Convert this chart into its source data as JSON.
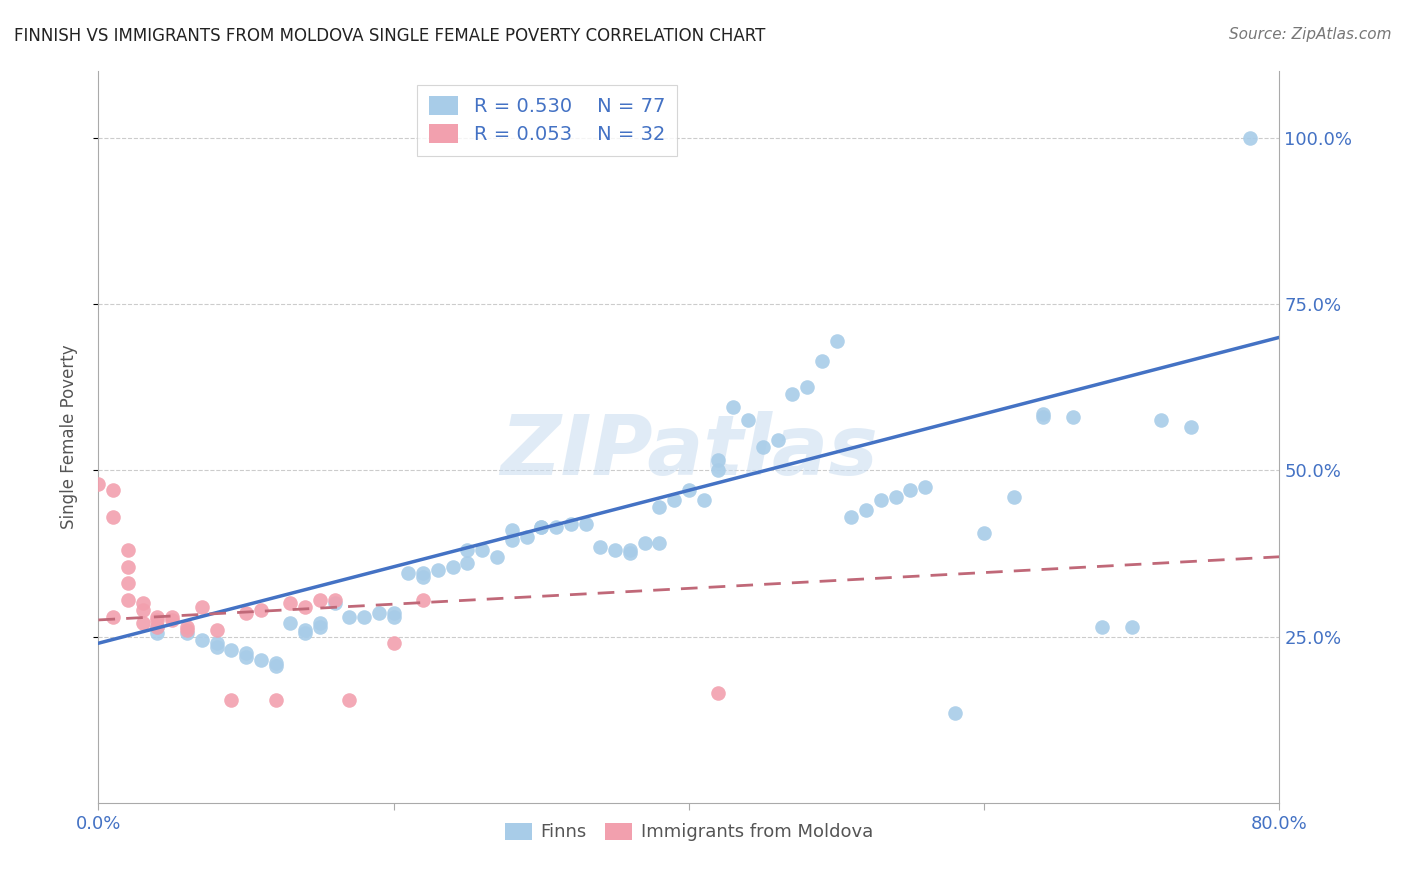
{
  "title": "FINNISH VS IMMIGRANTS FROM MOLDOVA SINGLE FEMALE POVERTY CORRELATION CHART",
  "source": "Source: ZipAtlas.com",
  "ylabel": "Single Female Poverty",
  "ytick_labels": [
    "100.0%",
    "75.0%",
    "50.0%",
    "25.0%"
  ],
  "ytick_values": [
    1.0,
    0.75,
    0.5,
    0.25
  ],
  "xlim": [
    0.0,
    0.8
  ],
  "ylim": [
    0.0,
    1.1
  ],
  "legend_r1": "R = 0.530",
  "legend_n1": "N = 77",
  "legend_r2": "R = 0.053",
  "legend_n2": "N = 32",
  "color_finn": "#A8CCE8",
  "color_moldova": "#F2A0AE",
  "color_finn_line": "#4472C4",
  "color_moldova_line": "#C06878",
  "background_color": "#FFFFFF",
  "watermark": "ZIPatlas",
  "finn_line_x0": 0.0,
  "finn_line_y0": 0.24,
  "finn_line_x1": 0.8,
  "finn_line_y1": 0.7,
  "moldova_line_x0": 0.0,
  "moldova_line_y0": 0.275,
  "moldova_line_x1": 0.8,
  "moldova_line_y1": 0.37,
  "finn_x": [
    0.04,
    0.04,
    0.06,
    0.07,
    0.08,
    0.08,
    0.09,
    0.1,
    0.1,
    0.11,
    0.12,
    0.12,
    0.13,
    0.14,
    0.14,
    0.15,
    0.15,
    0.16,
    0.17,
    0.18,
    0.19,
    0.2,
    0.2,
    0.21,
    0.22,
    0.22,
    0.23,
    0.24,
    0.25,
    0.25,
    0.26,
    0.27,
    0.28,
    0.28,
    0.29,
    0.3,
    0.3,
    0.31,
    0.32,
    0.33,
    0.34,
    0.35,
    0.36,
    0.36,
    0.37,
    0.38,
    0.38,
    0.39,
    0.4,
    0.41,
    0.42,
    0.42,
    0.43,
    0.44,
    0.45,
    0.46,
    0.47,
    0.48,
    0.49,
    0.5,
    0.51,
    0.52,
    0.53,
    0.54,
    0.55,
    0.56,
    0.58,
    0.6,
    0.62,
    0.64,
    0.64,
    0.66,
    0.68,
    0.7,
    0.72,
    0.74,
    0.78
  ],
  "finn_y": [
    0.265,
    0.255,
    0.255,
    0.245,
    0.24,
    0.235,
    0.23,
    0.225,
    0.22,
    0.215,
    0.21,
    0.205,
    0.27,
    0.26,
    0.255,
    0.27,
    0.265,
    0.3,
    0.28,
    0.28,
    0.285,
    0.285,
    0.28,
    0.345,
    0.345,
    0.34,
    0.35,
    0.355,
    0.36,
    0.38,
    0.38,
    0.37,
    0.395,
    0.41,
    0.4,
    0.415,
    0.415,
    0.415,
    0.42,
    0.42,
    0.385,
    0.38,
    0.38,
    0.375,
    0.39,
    0.39,
    0.445,
    0.455,
    0.47,
    0.455,
    0.5,
    0.515,
    0.595,
    0.575,
    0.535,
    0.545,
    0.615,
    0.625,
    0.665,
    0.695,
    0.43,
    0.44,
    0.455,
    0.46,
    0.47,
    0.475,
    0.135,
    0.405,
    0.46,
    0.585,
    0.58,
    0.58,
    0.265,
    0.265,
    0.575,
    0.565,
    1.0
  ],
  "moldova_x": [
    0.0,
    0.01,
    0.01,
    0.01,
    0.02,
    0.02,
    0.02,
    0.02,
    0.03,
    0.03,
    0.03,
    0.04,
    0.04,
    0.04,
    0.05,
    0.05,
    0.06,
    0.06,
    0.07,
    0.08,
    0.09,
    0.1,
    0.11,
    0.12,
    0.13,
    0.14,
    0.15,
    0.16,
    0.17,
    0.2,
    0.22,
    0.42
  ],
  "moldova_y": [
    0.48,
    0.47,
    0.43,
    0.28,
    0.38,
    0.355,
    0.33,
    0.305,
    0.3,
    0.29,
    0.27,
    0.28,
    0.275,
    0.265,
    0.28,
    0.275,
    0.265,
    0.26,
    0.295,
    0.26,
    0.155,
    0.285,
    0.29,
    0.155,
    0.3,
    0.295,
    0.305,
    0.305,
    0.155,
    0.24,
    0.305,
    0.165
  ]
}
